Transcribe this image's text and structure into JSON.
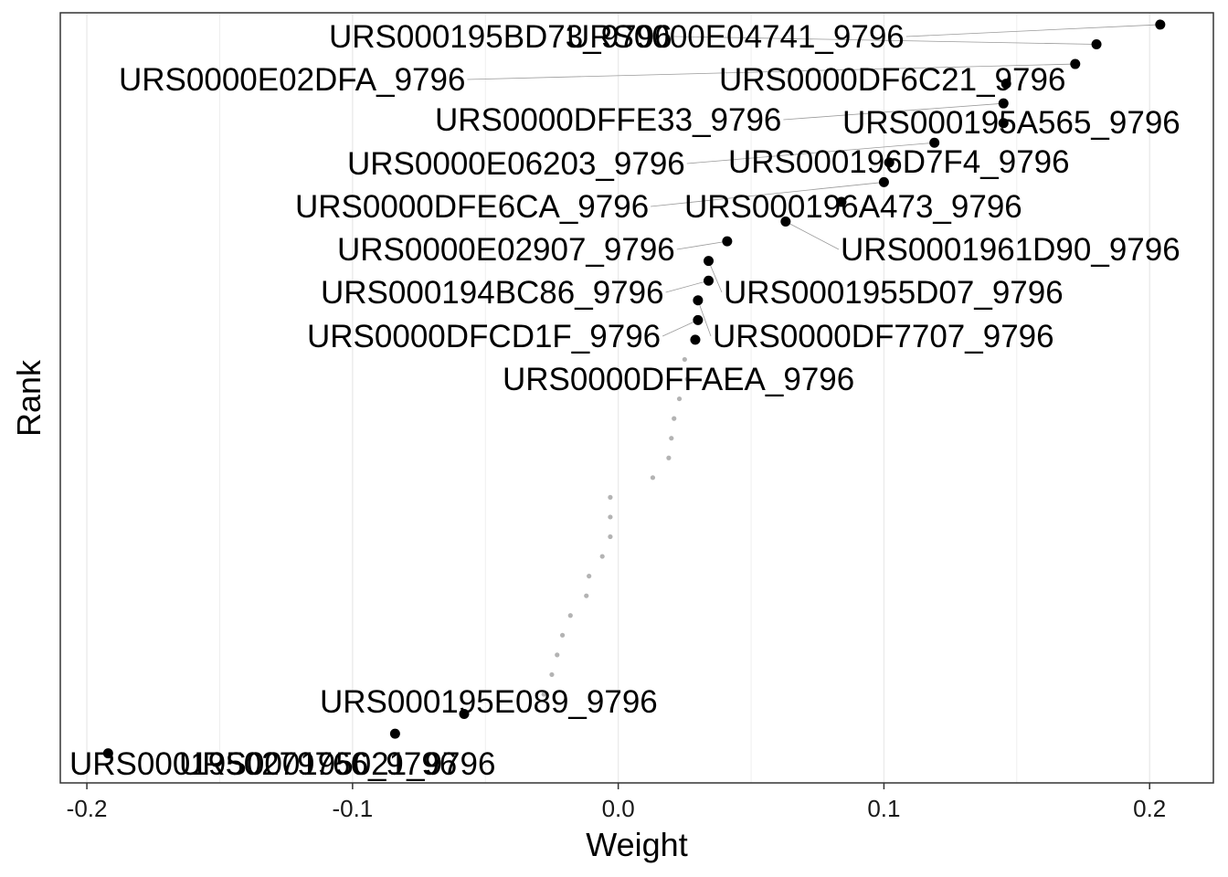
{
  "chart_data": {
    "type": "scatter",
    "xlabel": "Weight",
    "ylabel": "Rank",
    "xlim": [
      -0.21,
      0.224
    ],
    "ylim": [
      -0.5,
      38.6
    ],
    "x_ticks": [
      -0.2,
      -0.1,
      0.0,
      0.1,
      0.2
    ],
    "x_tick_labels": [
      "-0.2",
      "-0.1",
      "0.0",
      "0.1",
      "0.2"
    ],
    "grid": true,
    "legend": "none",
    "labeled_points": [
      {
        "name": "URS000195BD73_9796",
        "x": 0.18,
        "y": 37
      },
      {
        "name": "URS0000E04741_9796",
        "x": 0.204,
        "y": 38
      },
      {
        "name": "URS0000E02DFA_9796",
        "x": 0.172,
        "y": 36
      },
      {
        "name": "URS0000DF6C21_9796",
        "x": 0.146,
        "y": 35
      },
      {
        "name": "URS0000DFFE33_9796",
        "x": 0.145,
        "y": 34
      },
      {
        "name": "URS000195A565_9796",
        "x": 0.145,
        "y": 33
      },
      {
        "name": "URS0000E06203_9796",
        "x": 0.119,
        "y": 32
      },
      {
        "name": "URS000196D7F4_9796",
        "x": 0.102,
        "y": 31
      },
      {
        "name": "URS0000DFE6CA_9796",
        "x": 0.1,
        "y": 30
      },
      {
        "name": "URS000196A473_9796",
        "x": 0.084,
        "y": 29
      },
      {
        "name": "URS0001961D90_9796",
        "x": 0.063,
        "y": 28
      },
      {
        "name": "URS0000E02907_9796",
        "x": 0.041,
        "y": 27
      },
      {
        "name": "URS0001955D07_9796",
        "x": 0.034,
        "y": 26
      },
      {
        "name": "URS000194BC86_9796",
        "x": 0.034,
        "y": 25
      },
      {
        "name": "URS0000DF7707_9796",
        "x": 0.03,
        "y": 24
      },
      {
        "name": "URS0000DFCD1F_9796",
        "x": 0.03,
        "y": 23
      },
      {
        "name": "URS0000DFFAEA_9796",
        "x": 0.029,
        "y": 22
      },
      {
        "name": "URS000195E089_9796",
        "x": -0.058,
        "y": 3
      },
      {
        "name": "URS000195021_9796",
        "x": -0.084,
        "y": 2
      },
      {
        "name": "URS0001950279766_9796",
        "x": -0.192,
        "y": 1
      }
    ],
    "unlabeled_points": [
      {
        "x": 0.025,
        "y": 21
      },
      {
        "x": 0.026,
        "y": 20
      },
      {
        "x": 0.023,
        "y": 19
      },
      {
        "x": 0.021,
        "y": 18
      },
      {
        "x": 0.02,
        "y": 17
      },
      {
        "x": 0.019,
        "y": 16
      },
      {
        "x": 0.013,
        "y": 15
      },
      {
        "x": -0.003,
        "y": 14
      },
      {
        "x": -0.003,
        "y": 13
      },
      {
        "x": -0.003,
        "y": 12
      },
      {
        "x": -0.006,
        "y": 11
      },
      {
        "x": -0.011,
        "y": 10
      },
      {
        "x": -0.012,
        "y": 9
      },
      {
        "x": -0.018,
        "y": 8
      },
      {
        "x": -0.021,
        "y": 7
      },
      {
        "x": -0.023,
        "y": 6
      },
      {
        "x": -0.025,
        "y": 5
      },
      {
        "x": -0.028,
        "y": 4
      }
    ],
    "colors": {
      "labeled_point": "#000000",
      "unlabeled_point": "#b3b3b3",
      "grid": "#ebebeb",
      "leader_line": "#9a9a9a",
      "panel_border": "#333333"
    }
  }
}
